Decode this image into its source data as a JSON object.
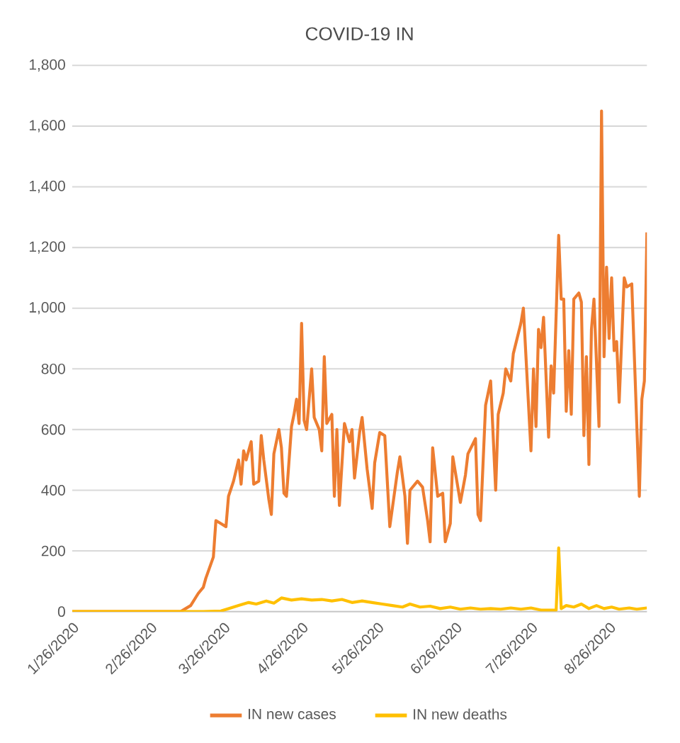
{
  "chart_data": {
    "type": "line",
    "title": "COVID-19 IN",
    "x": [
      "2020-01-26",
      "2020-03-09",
      "2020-03-13",
      "2020-03-16",
      "2020-03-18",
      "2020-03-19",
      "2020-03-22",
      "2020-03-23",
      "2020-03-25",
      "2020-03-27",
      "2020-03-28",
      "2020-03-30",
      "2020-04-01",
      "2020-04-02",
      "2020-04-03",
      "2020-04-04",
      "2020-04-06",
      "2020-04-07",
      "2020-04-09",
      "2020-04-10",
      "2020-04-11",
      "2020-04-13",
      "2020-04-14",
      "2020-04-15",
      "2020-04-17",
      "2020-04-18",
      "2020-04-19",
      "2020-04-20",
      "2020-04-22",
      "2020-04-23",
      "2020-04-24",
      "2020-04-25",
      "2020-04-26",
      "2020-04-27",
      "2020-04-28",
      "2020-04-30",
      "2020-05-01",
      "2020-05-03",
      "2020-05-04",
      "2020-05-05",
      "2020-05-06",
      "2020-05-08",
      "2020-05-09",
      "2020-05-10",
      "2020-05-11",
      "2020-05-13",
      "2020-05-15",
      "2020-05-16",
      "2020-05-17",
      "2020-05-19",
      "2020-05-20",
      "2020-05-22",
      "2020-05-24",
      "2020-05-25",
      "2020-05-27",
      "2020-05-29",
      "2020-05-31",
      "2020-06-03",
      "2020-06-04",
      "2020-06-06",
      "2020-06-07",
      "2020-06-08",
      "2020-06-11",
      "2020-06-13",
      "2020-06-15",
      "2020-06-16",
      "2020-06-17",
      "2020-06-19",
      "2020-06-21",
      "2020-06-22",
      "2020-06-24",
      "2020-06-25",
      "2020-06-26",
      "2020-06-28",
      "2020-06-30",
      "2020-07-01",
      "2020-07-04",
      "2020-07-05",
      "2020-07-06",
      "2020-07-08",
      "2020-07-10",
      "2020-07-12",
      "2020-07-13",
      "2020-07-15",
      "2020-07-16",
      "2020-07-18",
      "2020-07-19",
      "2020-07-22",
      "2020-07-23",
      "2020-07-26",
      "2020-07-27",
      "2020-07-28",
      "2020-07-29",
      "2020-07-30",
      "2020-07-31",
      "2020-08-02",
      "2020-08-03",
      "2020-08-04",
      "2020-08-06",
      "2020-08-07",
      "2020-08-08",
      "2020-08-09",
      "2020-08-10",
      "2020-08-11",
      "2020-08-12",
      "2020-08-14",
      "2020-08-15",
      "2020-08-16",
      "2020-08-17",
      "2020-08-18",
      "2020-08-19",
      "2020-08-20",
      "2020-08-22",
      "2020-08-23",
      "2020-08-24",
      "2020-08-25",
      "2020-08-26",
      "2020-08-27",
      "2020-08-28",
      "2020-08-29",
      "2020-08-30",
      "2020-09-01",
      "2020-09-02",
      "2020-09-04",
      "2020-09-07",
      "2020-09-08",
      "2020-09-09",
      "2020-09-10"
    ],
    "series": [
      {
        "name": "IN new cases",
        "color": "#ed7d31",
        "values": [
          0,
          0,
          20,
          60,
          80,
          110,
          180,
          300,
          290,
          280,
          380,
          430,
          500,
          420,
          530,
          500,
          560,
          420,
          430,
          580,
          500,
          370,
          320,
          520,
          600,
          540,
          390,
          380,
          610,
          650,
          700,
          620,
          950,
          630,
          600,
          800,
          640,
          600,
          530,
          840,
          620,
          650,
          380,
          600,
          350,
          620,
          560,
          600,
          440,
          590,
          640,
          470,
          340,
          490,
          590,
          580,
          280,
          460,
          510,
          380,
          225,
          400,
          430,
          410,
          300,
          230,
          540,
          380,
          390,
          230,
          290,
          510,
          460,
          360,
          450,
          520,
          570,
          320,
          300,
          680,
          760,
          400,
          650,
          720,
          800,
          760,
          850,
          950,
          1000,
          530,
          800,
          610,
          930,
          870,
          970,
          575,
          810,
          720,
          1240,
          1030,
          1030,
          660,
          860,
          650,
          1030,
          1050,
          1020,
          580,
          840,
          485,
          930,
          1030,
          610,
          1650,
          840,
          1135,
          900,
          1100,
          860,
          890,
          690,
          1100,
          1070,
          1080,
          380,
          700,
          760,
          1250
        ]
      },
      {
        "name": "IN new deaths",
        "color": "#ffc000",
        "x": [
          "2020-01-26",
          "2020-03-18",
          "2020-03-25",
          "2020-03-28",
          "2020-04-01",
          "2020-04-05",
          "2020-04-08",
          "2020-04-12",
          "2020-04-15",
          "2020-04-18",
          "2020-04-22",
          "2020-04-26",
          "2020-04-30",
          "2020-05-04",
          "2020-05-08",
          "2020-05-12",
          "2020-05-16",
          "2020-05-20",
          "2020-05-24",
          "2020-05-28",
          "2020-06-01",
          "2020-06-05",
          "2020-06-08",
          "2020-06-12",
          "2020-06-16",
          "2020-06-20",
          "2020-06-24",
          "2020-06-28",
          "2020-07-02",
          "2020-07-06",
          "2020-07-10",
          "2020-07-14",
          "2020-07-18",
          "2020-07-22",
          "2020-07-26",
          "2020-07-30",
          "2020-08-05",
          "2020-08-06",
          "2020-08-07",
          "2020-08-09",
          "2020-08-12",
          "2020-08-15",
          "2020-08-18",
          "2020-08-21",
          "2020-08-24",
          "2020-08-27",
          "2020-08-30",
          "2020-09-03",
          "2020-09-06",
          "2020-09-10"
        ],
        "values": [
          0,
          0,
          2,
          10,
          20,
          30,
          25,
          35,
          28,
          45,
          38,
          42,
          38,
          40,
          35,
          40,
          30,
          35,
          30,
          25,
          20,
          15,
          25,
          15,
          18,
          10,
          15,
          8,
          12,
          8,
          10,
          8,
          12,
          8,
          12,
          5,
          5,
          210,
          10,
          20,
          15,
          25,
          10,
          20,
          10,
          15,
          8,
          12,
          8,
          12
        ]
      }
    ],
    "xlim": [
      "2020-01-26",
      "2020-09-10"
    ],
    "xticks": [
      {
        "value": "2020-01-26",
        "label": "1/26/2020"
      },
      {
        "value": "2020-02-26",
        "label": "2/26/2020"
      },
      {
        "value": "2020-03-26",
        "label": "3/26/2020"
      },
      {
        "value": "2020-04-26",
        "label": "4/26/2020"
      },
      {
        "value": "2020-05-26",
        "label": "5/26/2020"
      },
      {
        "value": "2020-06-26",
        "label": "6/26/2020"
      },
      {
        "value": "2020-07-26",
        "label": "7/26/2020"
      },
      {
        "value": "2020-08-26",
        "label": "8/26/2020"
      }
    ],
    "ylim": [
      0,
      1800
    ],
    "yticks": [
      {
        "value": 0,
        "label": "0"
      },
      {
        "value": 200,
        "label": "200"
      },
      {
        "value": 400,
        "label": "400"
      },
      {
        "value": 600,
        "label": "600"
      },
      {
        "value": 800,
        "label": "800"
      },
      {
        "value": 1000,
        "label": "1,000"
      },
      {
        "value": 1200,
        "label": "1,200"
      },
      {
        "value": 1400,
        "label": "1,400"
      },
      {
        "value": 1600,
        "label": "1,600"
      },
      {
        "value": 1800,
        "label": "1,800"
      }
    ],
    "grid": "y",
    "legend": "bottom",
    "marker": "none",
    "line_style": "solid"
  }
}
